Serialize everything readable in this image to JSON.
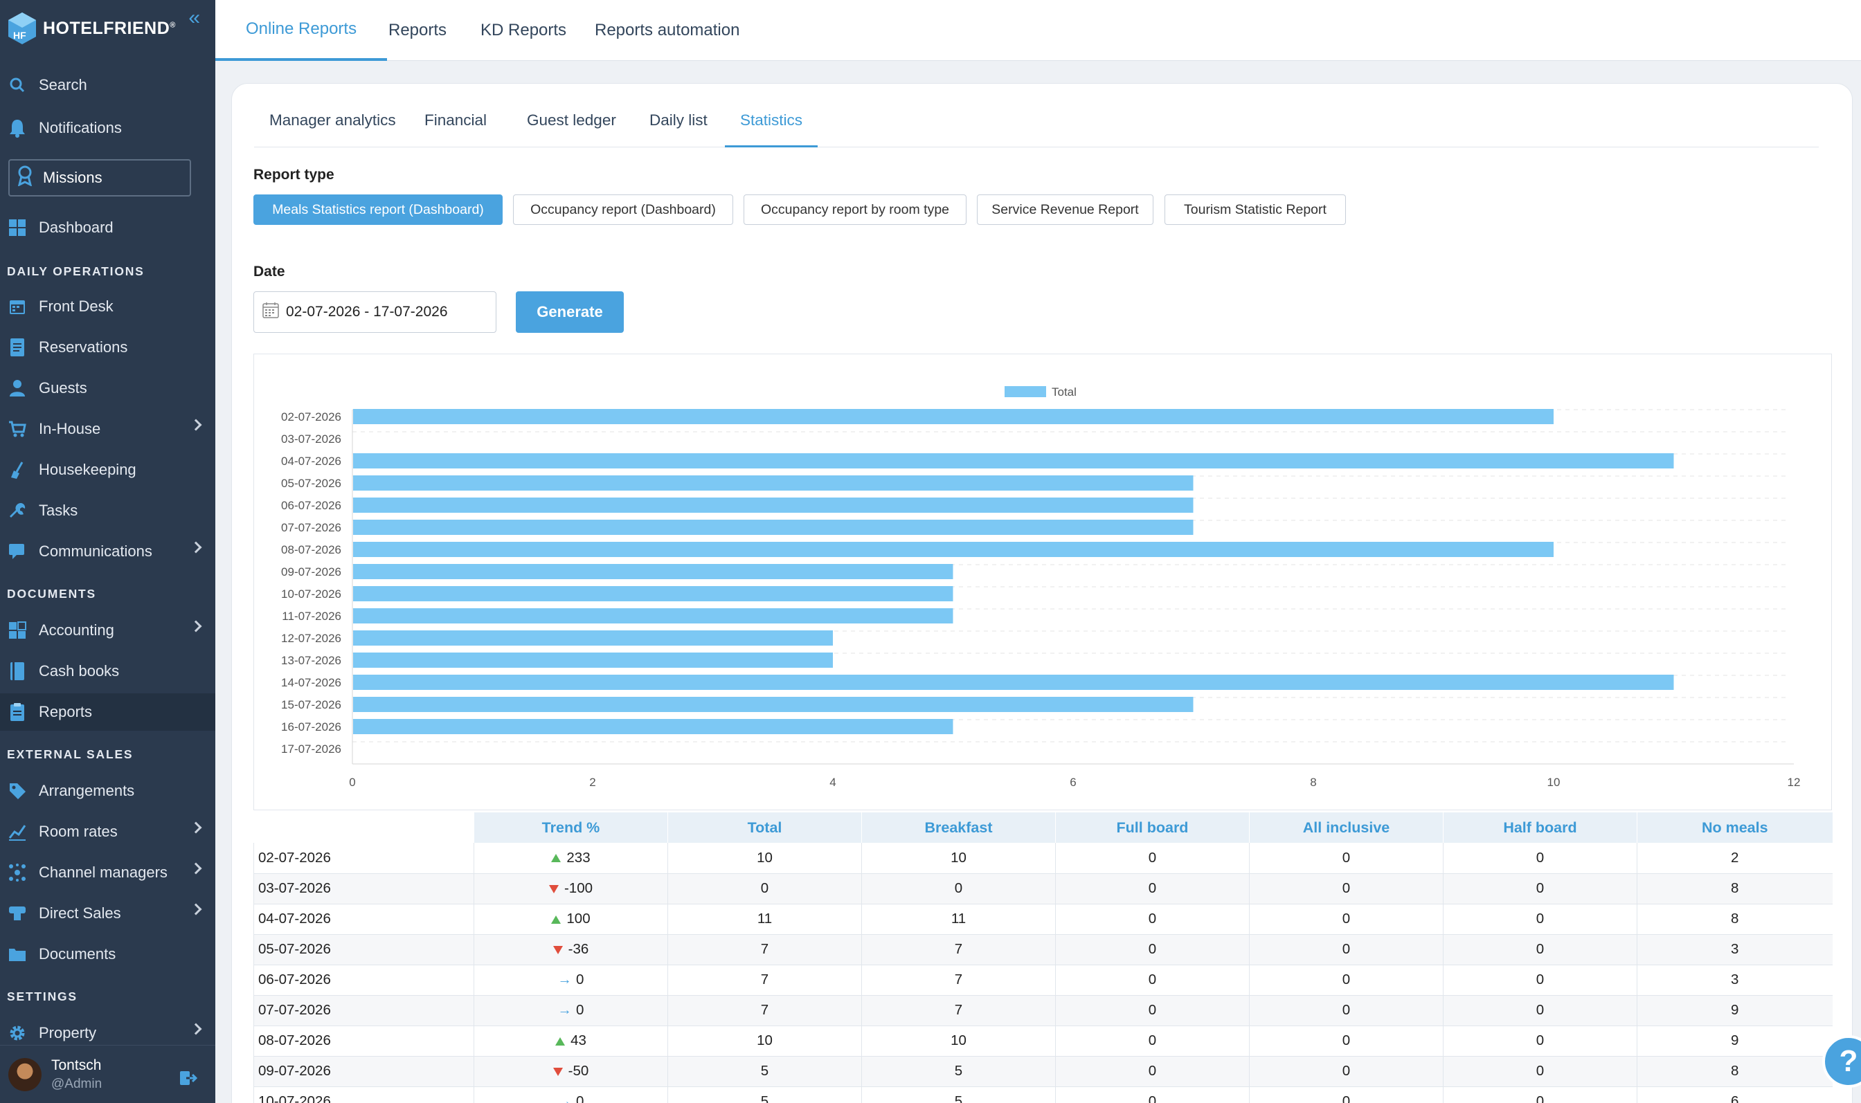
{
  "brand": {
    "name": "HOTELFRIEND",
    "reg": "®"
  },
  "sidebar": {
    "search": "Search",
    "notifications": "Notifications",
    "missions": "Missions",
    "dashboard": "Dashboard",
    "sections": {
      "daily": "DAILY OPERATIONS",
      "documents": "DOCUMENTS",
      "external": "EXTERNAL SALES",
      "settings": "SETTINGS"
    },
    "items": {
      "front_desk": "Front Desk",
      "reservations": "Reservations",
      "guests": "Guests",
      "in_house": "In-House",
      "housekeeping": "Housekeeping",
      "tasks": "Tasks",
      "communications": "Communications",
      "accounting": "Accounting",
      "cash_books": "Cash books",
      "reports": "Reports",
      "arrangements": "Arrangements",
      "room_rates": "Room rates",
      "channel_managers": "Channel managers",
      "direct_sales": "Direct Sales",
      "documents": "Documents",
      "property": "Property"
    },
    "user": {
      "name": "Tontsch",
      "role": "@Admin"
    }
  },
  "topbar": {
    "tabs": [
      "Online Reports",
      "Reports",
      "KD Reports",
      "Reports automation"
    ]
  },
  "subtabs": [
    "Manager analytics",
    "Financial",
    "Guest ledger",
    "Daily list",
    "Statistics"
  ],
  "report": {
    "type_label": "Report type",
    "types": [
      "Meals Statistics report (Dashboard)",
      "Occupancy report (Dashboard)",
      "Occupancy report by room type",
      "Service Revenue Report",
      "Tourism Statistic Report"
    ],
    "date_label": "Date",
    "date_value": "02-07-2026 - 17-07-2026",
    "generate": "Generate"
  },
  "chart_data": {
    "type": "bar",
    "orientation": "horizontal",
    "categories": [
      "02-07-2026",
      "03-07-2026",
      "04-07-2026",
      "05-07-2026",
      "06-07-2026",
      "07-07-2026",
      "08-07-2026",
      "09-07-2026",
      "10-07-2026",
      "11-07-2026",
      "12-07-2026",
      "13-07-2026",
      "14-07-2026",
      "15-07-2026",
      "16-07-2026",
      "17-07-2026"
    ],
    "series": [
      {
        "name": "Total",
        "values": [
          10,
          0,
          11,
          7,
          7,
          7,
          10,
          5,
          5,
          5,
          4,
          4,
          11,
          7,
          5,
          0
        ],
        "color": "#7cc8f4"
      }
    ],
    "xlim": [
      0,
      12
    ],
    "xticks": [
      0,
      2,
      4,
      6,
      8,
      10,
      12
    ],
    "legend": "top-center",
    "grid": true
  },
  "table": {
    "headers": [
      "",
      "Trend %",
      "Total",
      "Breakfast",
      "Full board",
      "All inclusive",
      "Half board",
      "No meals"
    ],
    "rows": [
      {
        "date": "02-07-2026",
        "trend": "up",
        "trend_value": "233",
        "total": "10",
        "breakfast": "10",
        "full": "0",
        "all": "0",
        "half": "0",
        "none": "2"
      },
      {
        "date": "03-07-2026",
        "trend": "down",
        "trend_value": "-100",
        "total": "0",
        "breakfast": "0",
        "full": "0",
        "all": "0",
        "half": "0",
        "none": "8"
      },
      {
        "date": "04-07-2026",
        "trend": "up",
        "trend_value": "100",
        "total": "11",
        "breakfast": "11",
        "full": "0",
        "all": "0",
        "half": "0",
        "none": "8"
      },
      {
        "date": "05-07-2026",
        "trend": "down",
        "trend_value": "-36",
        "total": "7",
        "breakfast": "7",
        "full": "0",
        "all": "0",
        "half": "0",
        "none": "3"
      },
      {
        "date": "06-07-2026",
        "trend": "flat",
        "trend_value": "0",
        "total": "7",
        "breakfast": "7",
        "full": "0",
        "all": "0",
        "half": "0",
        "none": "3"
      },
      {
        "date": "07-07-2026",
        "trend": "flat",
        "trend_value": "0",
        "total": "7",
        "breakfast": "7",
        "full": "0",
        "all": "0",
        "half": "0",
        "none": "9"
      },
      {
        "date": "08-07-2026",
        "trend": "up",
        "trend_value": "43",
        "total": "10",
        "breakfast": "10",
        "full": "0",
        "all": "0",
        "half": "0",
        "none": "9"
      },
      {
        "date": "09-07-2026",
        "trend": "down",
        "trend_value": "-50",
        "total": "5",
        "breakfast": "5",
        "full": "0",
        "all": "0",
        "half": "0",
        "none": "8"
      },
      {
        "date": "10-07-2026",
        "trend": "flat",
        "trend_value": "0",
        "total": "5",
        "breakfast": "5",
        "full": "0",
        "all": "0",
        "half": "0",
        "none": "6"
      }
    ]
  },
  "help": {
    "label": "?"
  },
  "colors": {
    "accent": "#4aa3df",
    "sidebar": "#2b3a4e",
    "bar": "#7cc8f4",
    "up": "#58b85a",
    "down": "#e04d3c"
  }
}
